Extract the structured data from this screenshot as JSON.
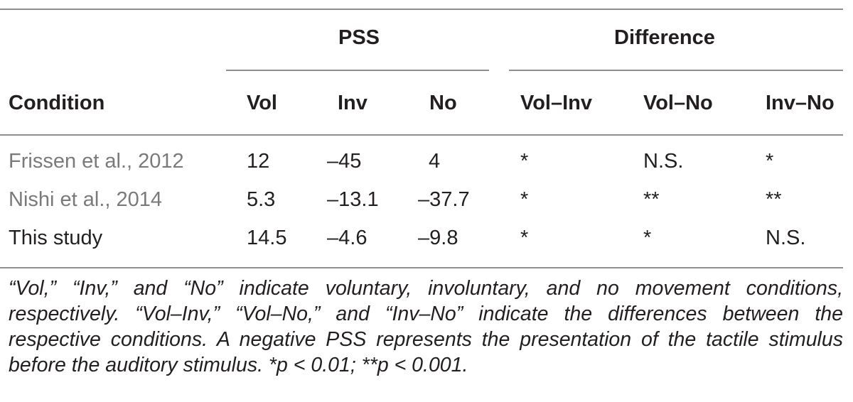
{
  "table": {
    "header_groups": [
      {
        "label": "PSS"
      },
      {
        "label": "Difference"
      }
    ],
    "columns": [
      "Condition",
      "Vol",
      "Inv",
      "No",
      "Vol–Inv",
      "Vol–No",
      "Inv–No"
    ],
    "rows": [
      {
        "condition": "Frissen et al., 2012",
        "vol": "12",
        "inv": "–45",
        "no": "4",
        "vol_inv": "*",
        "vol_no": "N.S.",
        "inv_no": "*"
      },
      {
        "condition": "Nishi et al., 2014",
        "vol": "5.3",
        "inv": "–13.1",
        "no": "–37.7",
        "vol_inv": "*",
        "vol_no": "**",
        "inv_no": "**"
      },
      {
        "condition": "This study",
        "vol": "14.5",
        "inv": "–4.6",
        "no": "–9.8",
        "vol_inv": "*",
        "vol_no": "*",
        "inv_no": "N.S."
      }
    ]
  },
  "footnote": "“Vol,” “Inv,” and “No” indicate voluntary, involuntary, and no movement conditions, respectively. “Vol–Inv,” “Vol–No,” and “Inv–No” indicate the differences between the respective conditions. A negative PSS represents the presentation of the tactile stimulus before the auditory stimulus. *p < 0.01; **p < 0.001."
}
